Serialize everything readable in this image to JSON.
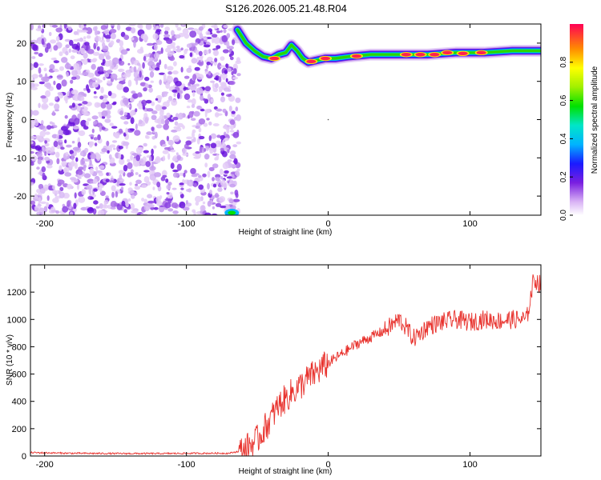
{
  "title": "S126.2026.005.21.48.R04",
  "chart_data": [
    {
      "type": "heatmap",
      "panel": "spectrogram",
      "xlabel": "Height of straight line (km)",
      "ylabel": "Frequency (Hz)",
      "xlim": [
        -210,
        150
      ],
      "ylim": [
        -25,
        25
      ],
      "xticks": [
        -200,
        -100,
        0,
        100
      ],
      "yticks": [
        -20,
        -10,
        0,
        10,
        20
      ],
      "noise_region_x": [
        -210,
        -63
      ],
      "ridge": {
        "name": "dominant frequency trace",
        "x": [
          -64,
          -58,
          -52,
          -46,
          -40,
          -35,
          -30,
          -26,
          -22,
          -18,
          -14,
          -8,
          -2,
          5,
          15,
          30,
          50,
          70,
          90,
          110,
          130,
          150
        ],
        "y": [
          23.5,
          20.0,
          18.0,
          16.5,
          16.0,
          17.0,
          17.5,
          19.5,
          18.0,
          16.0,
          15.0,
          15.5,
          16.0,
          16.0,
          16.5,
          17.0,
          17.0,
          17.0,
          17.5,
          17.5,
          18.0,
          18.0
        ]
      },
      "colorbar": {
        "label": "Normalized spectral amplitude",
        "range": [
          0.0,
          1.0
        ],
        "ticks": [
          0.0,
          0.2,
          0.4,
          0.6,
          0.8
        ]
      }
    },
    {
      "type": "line",
      "panel": "snr",
      "xlabel": "Height of straight line (km)",
      "ylabel": "SNR (10 * v/v)",
      "xlim": [
        -210,
        150
      ],
      "ylim": [
        0,
        1400
      ],
      "xticks": [
        -200,
        -100,
        0,
        100
      ],
      "yticks": [
        0,
        200,
        400,
        600,
        800,
        1000,
        1200
      ],
      "series": [
        {
          "name": "SNR",
          "color": "#e8322d",
          "x": [
            -210,
            -180,
            -150,
            -120,
            -90,
            -70,
            -60,
            -50,
            -45,
            -40,
            -35,
            -30,
            -25,
            -20,
            -15,
            -10,
            -5,
            0,
            10,
            20,
            30,
            40,
            45,
            50,
            55,
            60,
            65,
            70,
            80,
            90,
            100,
            110,
            120,
            130,
            140,
            145,
            150
          ],
          "y": [
            25,
            20,
            18,
            18,
            20,
            20,
            40,
            120,
            200,
            280,
            370,
            420,
            470,
            510,
            560,
            600,
            640,
            680,
            750,
            820,
            870,
            920,
            960,
            1000,
            940,
            860,
            900,
            950,
            980,
            1000,
            980,
            1000,
            990,
            1000,
            1000,
            1300,
            1250
          ]
        }
      ]
    }
  ]
}
